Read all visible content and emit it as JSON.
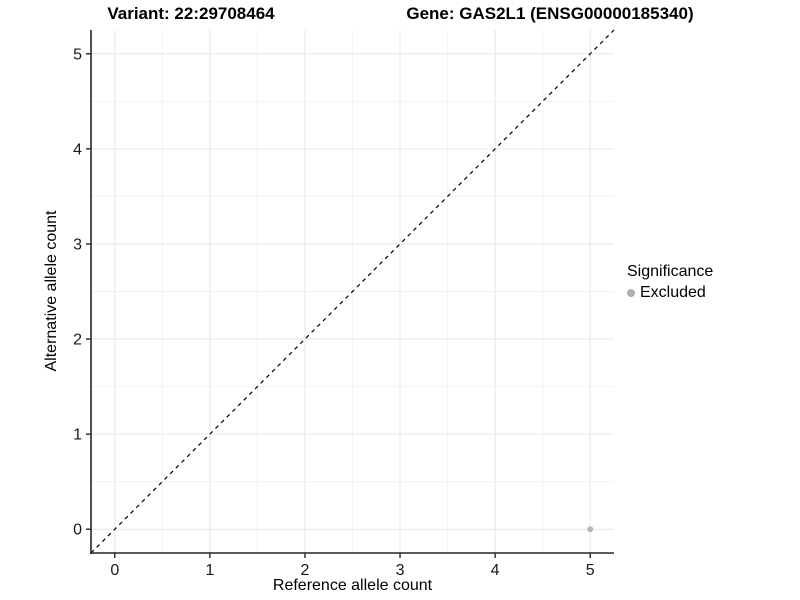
{
  "chart_data": {
    "type": "scatter",
    "title_left": "Variant: 22:29708464",
    "title_right": "Gene: GAS2L1 (ENSG00000185340)",
    "xlabel": "Reference allele count",
    "ylabel": "Alternative allele count",
    "xlim": [
      -0.25,
      5.25
    ],
    "ylim": [
      -0.25,
      5.25
    ],
    "x_ticks": [
      0,
      1,
      2,
      3,
      4,
      5
    ],
    "y_ticks": [
      0,
      1,
      2,
      3,
      4,
      5
    ],
    "x_minor": [
      0.5,
      1.5,
      2.5,
      3.5,
      4.5
    ],
    "y_minor": [
      0.5,
      1.5,
      2.5,
      3.5,
      4.5
    ],
    "grid": "major+minor",
    "points": [
      {
        "x": 5,
        "y": 0,
        "significance": "Excluded",
        "color": "#b8b8b8"
      }
    ],
    "reference_line": {
      "slope": 1,
      "intercept": 0,
      "style": "dashed",
      "color": "#000000"
    },
    "legend": {
      "title": "Significance",
      "position": "right",
      "items": [
        {
          "label": "Excluded",
          "color": "#b0b0b0"
        }
      ]
    }
  },
  "colors": {
    "background": "#ffffff",
    "grid_major": "#e6e6e6",
    "grid_minor": "#f2f2f2",
    "axis": "#262626",
    "tick_text": "#1a1a1a",
    "point": "#b8b8b8",
    "reference_line": "#000000"
  }
}
